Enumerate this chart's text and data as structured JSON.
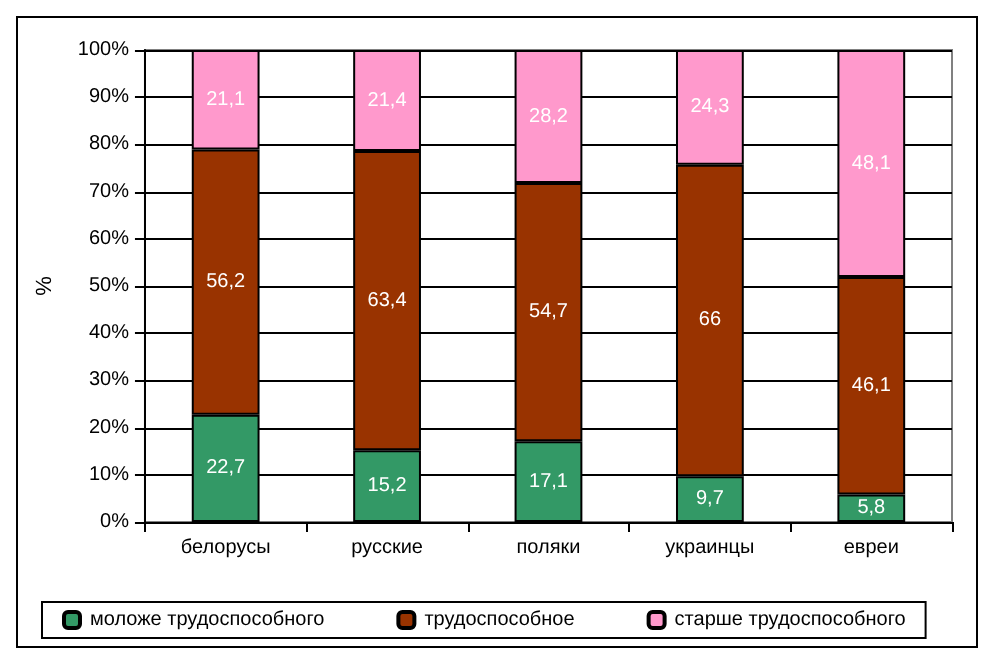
{
  "chart_data": {
    "type": "bar",
    "stacked": true,
    "ylabel": "%",
    "categories": [
      "белорусы",
      "русские",
      "поляки",
      "украинцы",
      "евреи"
    ],
    "series": [
      {
        "name": "моложе трудоспособного",
        "color": "#339966",
        "values": [
          22.7,
          15.2,
          17.1,
          9.7,
          5.8
        ],
        "value_labels": [
          "22,7",
          "15,2",
          "17,1",
          "9,7",
          "5,8"
        ]
      },
      {
        "name": "трудоспособное",
        "color": "#993300",
        "values": [
          56.2,
          63.4,
          54.7,
          66,
          46.1
        ],
        "value_labels": [
          "56,2",
          "63,4",
          "54,7",
          "66",
          "46,1"
        ]
      },
      {
        "name": "старше трудоспособного",
        "color": "#ff99cc",
        "values": [
          21.1,
          21.4,
          28.2,
          24.3,
          48.1
        ],
        "value_labels": [
          "21,1",
          "21,4",
          "28,2",
          "24,3",
          "48,1"
        ]
      }
    ],
    "ylim": [
      0,
      100
    ],
    "yticks": [
      {
        "value": 0,
        "label": "0%"
      },
      {
        "value": 10,
        "label": "10%"
      },
      {
        "value": 20,
        "label": "20%"
      },
      {
        "value": 30,
        "label": "30%"
      },
      {
        "value": 40,
        "label": "40%"
      },
      {
        "value": 50,
        "label": "50%"
      },
      {
        "value": 60,
        "label": "60%"
      },
      {
        "value": 70,
        "label": "70%"
      },
      {
        "value": 80,
        "label": "80%"
      },
      {
        "value": 90,
        "label": "90%"
      },
      {
        "value": 100,
        "label": "100%"
      }
    ],
    "grid": "y",
    "legend": "bottom"
  }
}
